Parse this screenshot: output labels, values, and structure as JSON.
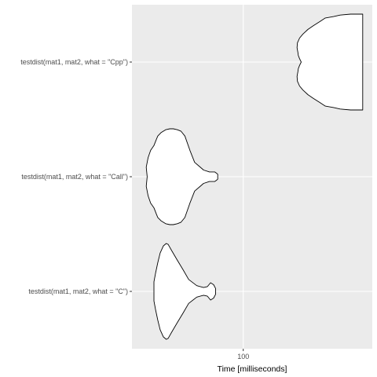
{
  "chart_data": {
    "type": "violin",
    "orientation": "horizontal",
    "xlabel": "Time [milliseconds]",
    "ylabel": "",
    "x_scale": "log",
    "x_ticks": [
      100
    ],
    "x_tick_labels": [
      "100"
    ],
    "xlim": [
      55,
      200
    ],
    "grid": true,
    "colors": {
      "panel": "#ebebeb",
      "grid": "#ffffff",
      "fill": "#ffffff",
      "stroke": "#000000"
    },
    "categories": [
      "testdist(mat1, mat2, what = \"Cpp\")",
      "testdist(mat1, mat2, what = \"Call\")",
      "testdist(mat1, mat2, what = \"C\")"
    ],
    "series": [
      {
        "category": "testdist(mat1, mat2, what = \"Cpp\")",
        "profile": [
          [
            136.5,
            0.0
          ],
          [
            135.3,
            0.07
          ],
          [
            134.4,
            0.14
          ],
          [
            134.1,
            0.2
          ],
          [
            133.5,
            0.3
          ],
          [
            133.8,
            0.4
          ],
          [
            135.3,
            0.5
          ],
          [
            137.7,
            0.58
          ],
          [
            141.5,
            0.68
          ],
          [
            145.8,
            0.76
          ],
          [
            150.6,
            0.84
          ],
          [
            155.4,
            0.92
          ],
          [
            162.5,
            0.95
          ],
          [
            168.3,
            0.98
          ],
          [
            178.0,
            1.0
          ],
          [
            190.0,
            1.0
          ],
          [
            190.0,
            0.0
          ]
        ]
      },
      {
        "category": "testdist(mat1, mat2, what = \"Call\")",
        "profile": [
          [
            59.7,
            0.0
          ],
          [
            59.4,
            0.2
          ],
          [
            60.0,
            0.4
          ],
          [
            60.8,
            0.55
          ],
          [
            61.9,
            0.65
          ],
          [
            62.7,
            0.78
          ],
          [
            63.2,
            0.85
          ],
          [
            64.3,
            0.92
          ],
          [
            65.9,
            0.98
          ],
          [
            67.4,
            1.0
          ],
          [
            68.7,
            1.0
          ],
          [
            70.2,
            0.98
          ],
          [
            71.6,
            0.95
          ],
          [
            73.1,
            0.85
          ],
          [
            75.1,
            0.55
          ],
          [
            77.0,
            0.3
          ],
          [
            80.8,
            0.14
          ],
          [
            83.4,
            0.1
          ],
          [
            85.8,
            0.1
          ],
          [
            86.7,
            0.07
          ],
          [
            87.2,
            0.05
          ],
          [
            87.2,
            0.0
          ]
        ]
      },
      {
        "category": "testdist(mat1, mat2, what = \"C\")",
        "profile": [
          [
            61.9,
            0.0
          ],
          [
            61.9,
            0.2
          ],
          [
            62.5,
            0.4
          ],
          [
            63.2,
            0.6
          ],
          [
            64.0,
            0.8
          ],
          [
            65.1,
            0.95
          ],
          [
            66.1,
            1.0
          ],
          [
            66.8,
            0.98
          ],
          [
            68.1,
            0.85
          ],
          [
            70.2,
            0.65
          ],
          [
            72.4,
            0.45
          ],
          [
            74.6,
            0.25
          ],
          [
            77.9,
            0.12
          ],
          [
            80.8,
            0.08
          ],
          [
            82.5,
            0.1
          ],
          [
            83.9,
            0.18
          ],
          [
            85.3,
            0.14
          ],
          [
            86.2,
            0.06
          ],
          [
            86.2,
            0.0
          ]
        ]
      }
    ]
  }
}
